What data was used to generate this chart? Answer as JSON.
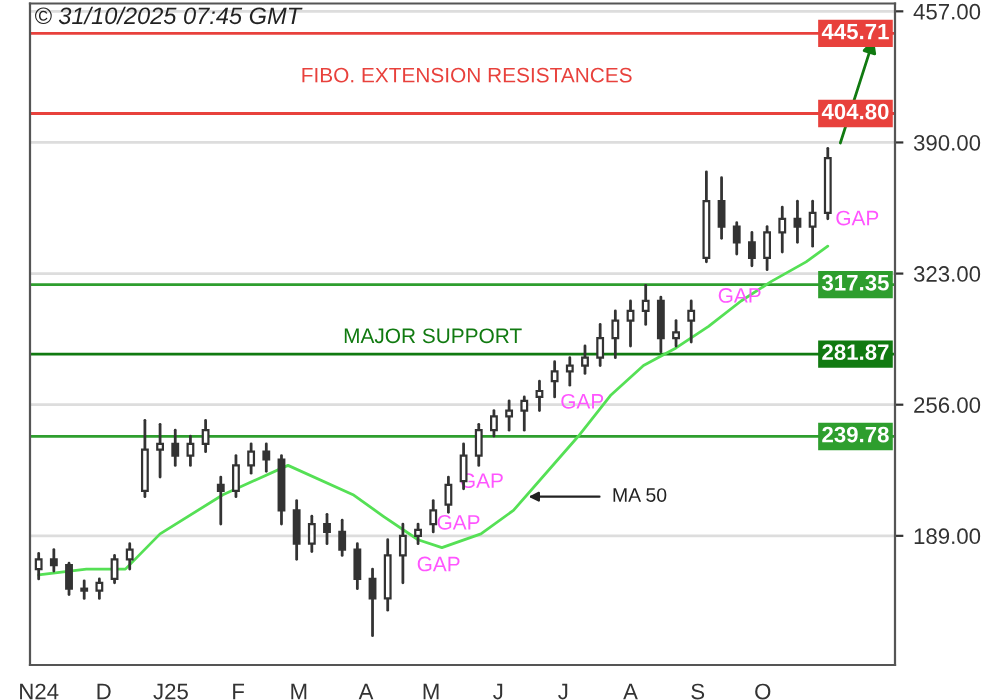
{
  "chart_data": {
    "type": "candlestick",
    "x": [
      "2024-11-01",
      "2024-11-08",
      "2024-11-15",
      "2024-11-22",
      "2024-11-29",
      "2024-12-06",
      "2024-12-13",
      "2024-12-20",
      "2024-12-27",
      "2025-01-03",
      "2025-01-10",
      "2025-01-17",
      "2025-01-24",
      "2025-01-31",
      "2025-02-07",
      "2025-02-14",
      "2025-02-21",
      "2025-02-28",
      "2025-03-07",
      "2025-03-14",
      "2025-03-21",
      "2025-03-28",
      "2025-04-04",
      "2025-04-11",
      "2025-04-18",
      "2025-04-25",
      "2025-05-02",
      "2025-05-09",
      "2025-05-16",
      "2025-05-23",
      "2025-05-30",
      "2025-06-06",
      "2025-06-13",
      "2025-06-20",
      "2025-06-27",
      "2025-07-04",
      "2025-07-11",
      "2025-07-18",
      "2025-07-25",
      "2025-08-01",
      "2025-08-08",
      "2025-08-15",
      "2025-08-22",
      "2025-08-29",
      "2025-09-05",
      "2025-09-12",
      "2025-09-19",
      "2025-09-26",
      "2025-10-03",
      "2025-10-10",
      "2025-10-17",
      "2025-10-24",
      "2025-10-31"
    ],
    "ohlc": [
      [
        172,
        180,
        167,
        177
      ],
      [
        177,
        182,
        171,
        174
      ],
      [
        174,
        175,
        159,
        162
      ],
      [
        162,
        166,
        157,
        161
      ],
      [
        161,
        167,
        157,
        165
      ],
      [
        167,
        179,
        165,
        177
      ],
      [
        177,
        185,
        172,
        182
      ],
      [
        212,
        248,
        209,
        233
      ],
      [
        233,
        246,
        219,
        236
      ],
      [
        236,
        243,
        225,
        230
      ],
      [
        230,
        240,
        225,
        236
      ],
      [
        236,
        248,
        232,
        243
      ],
      [
        215,
        219,
        195,
        212
      ],
      [
        212,
        230,
        209,
        225
      ],
      [
        225,
        236,
        221,
        232
      ],
      [
        232,
        236,
        222,
        228
      ],
      [
        228,
        230,
        195,
        202
      ],
      [
        202,
        207,
        177,
        185
      ],
      [
        185,
        199,
        181,
        195
      ],
      [
        195,
        200,
        185,
        191
      ],
      [
        191,
        197,
        179,
        182
      ],
      [
        182,
        185,
        162,
        167
      ],
      [
        167,
        172,
        138,
        157
      ],
      [
        157,
        187,
        151,
        179
      ],
      [
        179,
        195,
        165,
        189
      ],
      [
        189,
        195,
        185,
        192
      ],
      [
        195,
        207,
        191,
        202
      ],
      [
        205,
        219,
        201,
        215
      ],
      [
        217,
        236,
        213,
        230
      ],
      [
        230,
        246,
        225,
        243
      ],
      [
        243,
        253,
        240,
        250
      ],
      [
        250,
        258,
        243,
        253
      ],
      [
        253,
        260,
        243,
        258
      ],
      [
        260,
        268,
        253,
        263
      ],
      [
        268,
        278,
        260,
        273
      ],
      [
        273,
        280,
        266,
        276
      ],
      [
        276,
        286,
        272,
        280
      ],
      [
        280,
        297,
        276,
        290
      ],
      [
        290,
        304,
        280,
        299
      ],
      [
        299,
        309,
        286,
        304
      ],
      [
        304,
        317,
        297,
        309
      ],
      [
        309,
        311,
        283,
        290
      ],
      [
        290,
        299,
        286,
        293
      ],
      [
        299,
        309,
        288,
        304
      ],
      [
        331,
        375,
        329,
        360
      ],
      [
        360,
        372,
        341,
        347
      ],
      [
        347,
        349,
        333,
        339
      ],
      [
        339,
        344,
        327,
        331
      ],
      [
        331,
        347,
        325,
        344
      ],
      [
        344,
        357,
        334,
        351
      ],
      [
        351,
        360,
        339,
        347
      ],
      [
        347,
        360,
        337,
        354
      ],
      [
        354,
        387,
        351,
        382
      ]
    ],
    "color": "#333333",
    "series": [
      {
        "type": "line",
        "color": "#55e055",
        "x": [
          "2024-11-01",
          "2024-11-23",
          "2024-12-11",
          "2024-12-27",
          "2025-01-25",
          "2025-02-24",
          "2025-03-26",
          "2025-04-09",
          "2025-04-25",
          "2025-05-06",
          "2025-05-24",
          "2025-06-08",
          "2025-07-08",
          "2025-07-23",
          "2025-08-07",
          "2025-08-22",
          "2025-09-06",
          "2025-09-21",
          "2025-10-05",
          "2025-10-21",
          "2025-10-31"
        ],
        "values": [
          169,
          172,
          172,
          190,
          210,
          225,
          210,
          199,
          187,
          183,
          190,
          202,
          240,
          261,
          276,
          285,
          296,
          309,
          319,
          329,
          337
        ]
      }
    ],
    "xlim": [
      "2024-10-28",
      "2025-12-01"
    ],
    "xticks": [
      {
        "value": "2024-11-01",
        "label": "N24"
      },
      {
        "value": "2024-12-01",
        "label": "D"
      },
      {
        "value": "2025-01-01",
        "label": "J25"
      },
      {
        "value": "2025-02-01",
        "label": "F"
      },
      {
        "value": "2025-03-01",
        "label": "M"
      },
      {
        "value": "2025-04-01",
        "label": "A"
      },
      {
        "value": "2025-05-01",
        "label": "M"
      },
      {
        "value": "2025-06-01",
        "label": "J"
      },
      {
        "value": "2025-07-01",
        "label": "J"
      },
      {
        "value": "2025-08-01",
        "label": "A"
      },
      {
        "value": "2025-09-01",
        "label": "S"
      },
      {
        "value": "2025-10-01",
        "label": "O"
      }
    ],
    "ylim": [
      123,
      461
    ],
    "yticks": [
      {
        "value": 189,
        "label": "189.00"
      },
      {
        "value": 256,
        "label": "256.00"
      },
      {
        "value": 323,
        "label": "323.00"
      },
      {
        "value": 390,
        "label": "390.00"
      },
      {
        "value": 457,
        "label": "457.00"
      }
    ],
    "grid": "y",
    "ref_lines": [
      {
        "axis": "y",
        "value": 445.71,
        "label": "445.71",
        "color": "#e8413c"
      },
      {
        "axis": "y",
        "value": 404.8,
        "label": "404.80",
        "color": "#e8413c"
      },
      {
        "axis": "y",
        "value": 317.35,
        "label": "317.35",
        "color": "#2e9e2e"
      },
      {
        "axis": "y",
        "value": 281.87,
        "label": "281.87",
        "color": "#117a11"
      },
      {
        "axis": "y",
        "value": 239.78,
        "label": "239.78",
        "color": "#2e9e2e"
      }
    ],
    "annotations": [
      "© 31/10/2025 07:45 GMT",
      "FIBO. EXTENSION RESISTANCES",
      "MAJOR SUPPORT",
      {
        "text": "MA 50",
        "x": "2025-06-15",
        "y": 209
      },
      "GAP",
      "GAP",
      "GAP",
      "GAP",
      "GAP",
      "GAP"
    ]
  }
}
